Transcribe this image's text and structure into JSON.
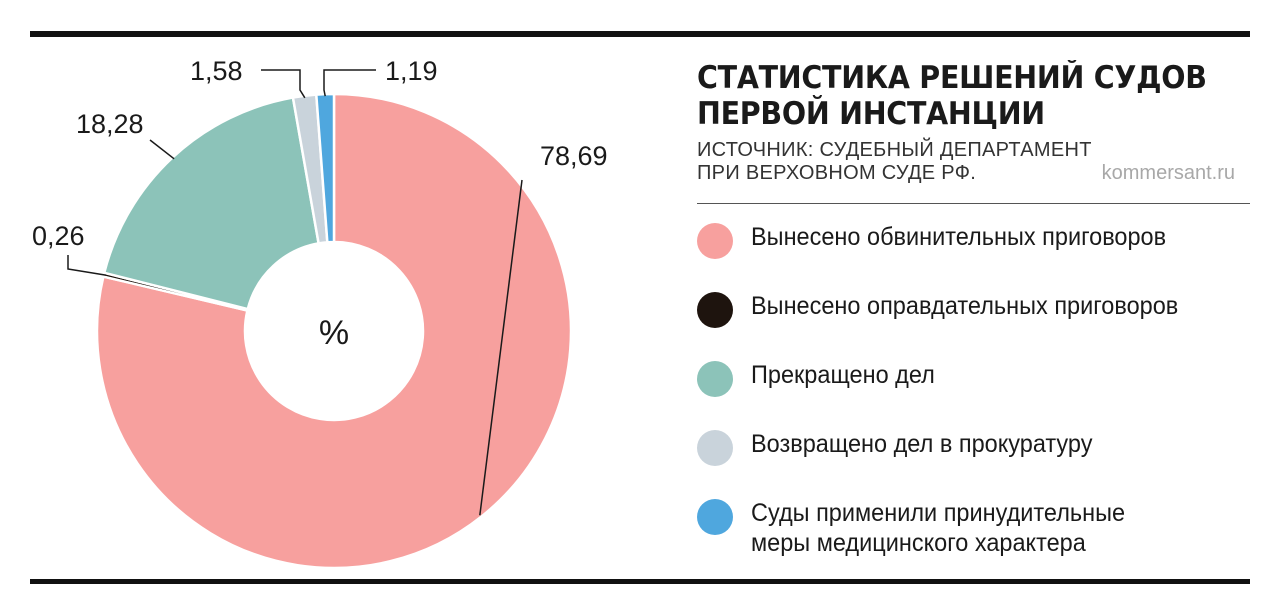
{
  "chart_data": {
    "type": "pie",
    "variant": "donut",
    "title_lines": [
      "СТАТИСТИКА РЕШЕНИЙ СУДОВ",
      "ПЕРВОЙ ИНСТАНЦИИ"
    ],
    "source_lines": [
      "ИСТОЧНИК: СУДЕБНЫЙ ДЕПАРТАМЕНТ",
      "ПРИ ВЕРХОВНОМ СУДЕ РФ."
    ],
    "center_label": "%",
    "legend_placement": "right",
    "slices": [
      {
        "label_lines": [
          "Вынесено обвинительных приговоров"
        ],
        "value": 78.69,
        "value_label": "78,69",
        "color": "#F7A09E"
      },
      {
        "label_lines": [
          "Вынесено оправдательных приговоров"
        ],
        "value": 0.26,
        "value_label": "0,26",
        "color": "#1E140E"
      },
      {
        "label_lines": [
          "Прекращено дел"
        ],
        "value": 18.28,
        "value_label": "18,28",
        "color": "#8CC3B9"
      },
      {
        "label_lines": [
          "Возвращено дел в прокуратуру"
        ],
        "value": 1.58,
        "value_label": "1,58",
        "color": "#C9D3DB"
      },
      {
        "label_lines": [
          "Суды применили принудительные",
          "меры медицинского характера"
        ],
        "value": 1.19,
        "value_label": "1,19",
        "color": "#4FA7DE"
      }
    ]
  },
  "site": "kommersant.ru",
  "colors": {
    "rule": "#111111",
    "text": "#1a1a1a",
    "site": "#a8a8a8"
  }
}
